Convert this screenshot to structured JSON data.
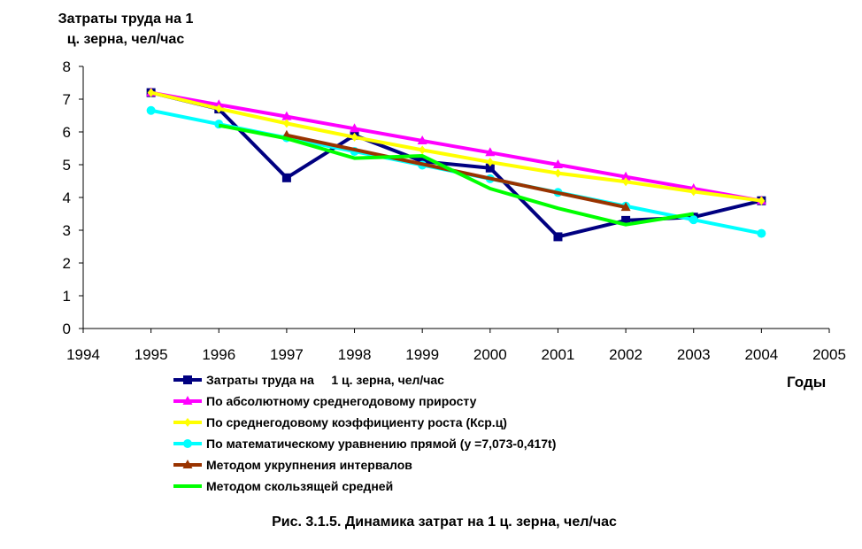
{
  "chart_data": {
    "type": "line",
    "title_lines": [
      "Затраты труда на 1",
      "ц. зерна, чел/час"
    ],
    "xlabel": "Годы",
    "caption": "Рис. 3.1.5. Динамика затрат на 1 ц. зерна, чел/час",
    "xlim": [
      1994,
      2005
    ],
    "ylim": [
      0,
      8
    ],
    "x_ticks": [
      1994,
      1995,
      1996,
      1997,
      1998,
      1999,
      2000,
      2001,
      2002,
      2003,
      2004,
      2005
    ],
    "y_ticks": [
      0,
      1,
      2,
      3,
      4,
      5,
      6,
      7,
      8
    ],
    "grid": false,
    "legend_position": "bottom",
    "series": [
      {
        "name": "Затраты труда на     1 ц. зерна, чел/час",
        "color": "#000080",
        "marker": "square",
        "points": [
          [
            1995,
            7.2
          ],
          [
            1996,
            6.7
          ],
          [
            1997,
            4.6
          ],
          [
            1998,
            5.9
          ],
          [
            1999,
            5.1
          ],
          [
            2000,
            4.9
          ],
          [
            2001,
            2.8
          ],
          [
            2002,
            3.3
          ],
          [
            2003,
            3.4
          ],
          [
            2004,
            3.9
          ]
        ]
      },
      {
        "name": "По абсолютному среднегодовому приросту",
        "color": "#ff00ff",
        "marker": "triangle",
        "points": [
          [
            1995,
            7.2
          ],
          [
            1996,
            6.83
          ],
          [
            1997,
            6.47
          ],
          [
            1998,
            6.1
          ],
          [
            1999,
            5.73
          ],
          [
            2000,
            5.37
          ],
          [
            2001,
            5.0
          ],
          [
            2002,
            4.63
          ],
          [
            2003,
            4.27
          ],
          [
            2004,
            3.9
          ]
        ]
      },
      {
        "name": "По среднегодовому коэффициенту роста (Кср.ц)",
        "color": "#ffff00",
        "marker": "diamond",
        "points": [
          [
            1995,
            7.2
          ],
          [
            1996,
            6.71
          ],
          [
            1997,
            6.26
          ],
          [
            1998,
            5.84
          ],
          [
            1999,
            5.45
          ],
          [
            2000,
            5.08
          ],
          [
            2001,
            4.74
          ],
          [
            2002,
            4.48
          ],
          [
            2003,
            4.18
          ],
          [
            2004,
            3.9
          ]
        ]
      },
      {
        "name": "По математическому уравнению прямой (y =7,073-0,417t)",
        "color": "#00ffff",
        "marker": "circle",
        "points": [
          [
            1995,
            6.656
          ],
          [
            1996,
            6.239
          ],
          [
            1997,
            5.822
          ],
          [
            1998,
            5.405
          ],
          [
            1999,
            4.988
          ],
          [
            2000,
            4.571
          ],
          [
            2001,
            4.154
          ],
          [
            2002,
            3.737
          ],
          [
            2003,
            3.32
          ],
          [
            2004,
            2.903
          ]
        ]
      },
      {
        "name": "Методом укрупнения интервалов",
        "color": "#993300",
        "marker": "triangle",
        "points": [
          [
            1997,
            5.9
          ],
          [
            2002,
            3.7
          ]
        ]
      },
      {
        "name": "Методом скользящей средней",
        "color": "#00ff00",
        "marker": "none",
        "points": [
          [
            1996,
            6.2
          ],
          [
            1997,
            5.8
          ],
          [
            1998,
            5.2
          ],
          [
            1999,
            5.27
          ],
          [
            2000,
            4.27
          ],
          [
            2001,
            3.67
          ],
          [
            2002,
            3.17
          ],
          [
            2003,
            3.5
          ]
        ]
      }
    ]
  }
}
